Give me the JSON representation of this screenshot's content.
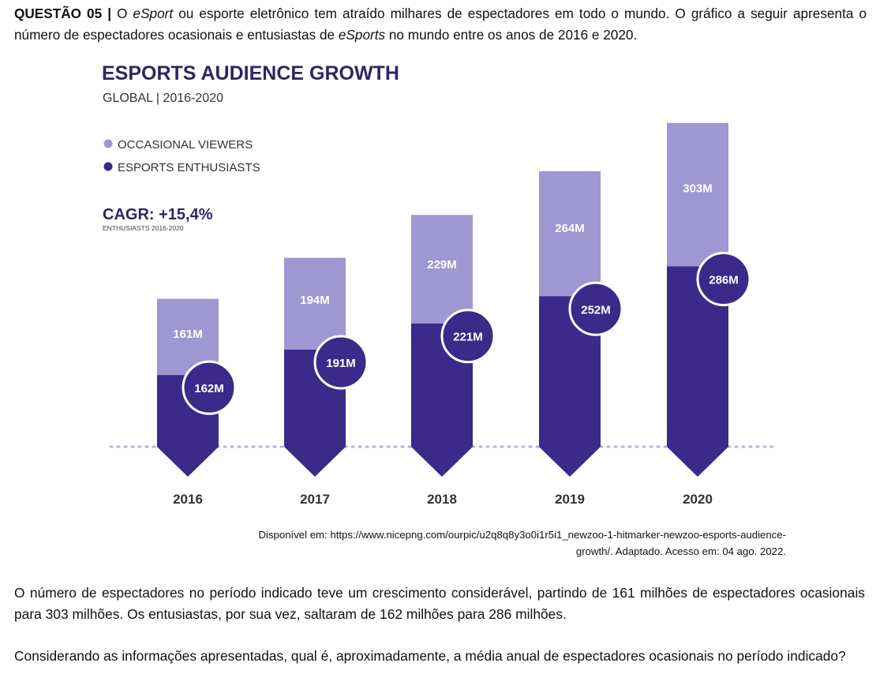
{
  "question": {
    "label": "QUESTÃO 05 |",
    "intro_1": "O ",
    "intro_em_1": "eSport",
    "intro_2": " ou esporte eletrônico tem atraído milhares de espectadores em todo o mundo. O gráfico a seguir apresenta o número de espectadores ocasionais e entusiastas de ",
    "intro_em_2": "eSports",
    "intro_3": " no mundo entre os anos de 2016 e 2020."
  },
  "chart_data": {
    "type": "bar",
    "title": "ESPORTS AUDIENCE GROWTH",
    "subtitle": "GLOBAL | 2016-2020",
    "categories": [
      "2016",
      "2017",
      "2018",
      "2019",
      "2020"
    ],
    "series": [
      {
        "name": "OCCASIONAL VIEWERS",
        "color": "#9f97d2",
        "values": [
          161,
          194,
          229,
          264,
          303
        ],
        "labels": [
          "161M",
          "194M",
          "229M",
          "264M",
          "303M"
        ]
      },
      {
        "name": "ESPORTS ENTHUSIASTS",
        "color": "#3b2a8a",
        "values": [
          162,
          191,
          221,
          252,
          286
        ],
        "labels": [
          "162M",
          "191M",
          "221M",
          "252M",
          "286M"
        ]
      }
    ],
    "stacked": true,
    "legend_position": "top-left",
    "annotation": {
      "title": "CAGR: +15,4%",
      "subtitle": "ENTHUSIASTS 2016-2020"
    },
    "colors": {
      "title": "#2d2660",
      "label_text": "#ffffff",
      "year_text": "#333333",
      "dotted_line": "#b7b2dc"
    }
  },
  "source": {
    "line1": "Disponível em: https://www.nicepng.com/ourpic/u2q8q8y3o0i1r5i1_newzoo-1-hitmarker-newzoo-esports-audience-",
    "line2": "growth/. Adaptado. Acesso em: 04 ago. 2022."
  },
  "paragraph_1": "O número de espectadores no período indicado teve um crescimento considerável, partindo de 161 milhões de espectadores ocasionais para 303 milhões. Os entusiastas, por sua vez, saltaram de 162 milhões para 286 milhões.",
  "paragraph_2": "Considerando as informações apresentadas, qual é, aproximadamente, a média anual de espectadores ocasionais no período indicado?"
}
